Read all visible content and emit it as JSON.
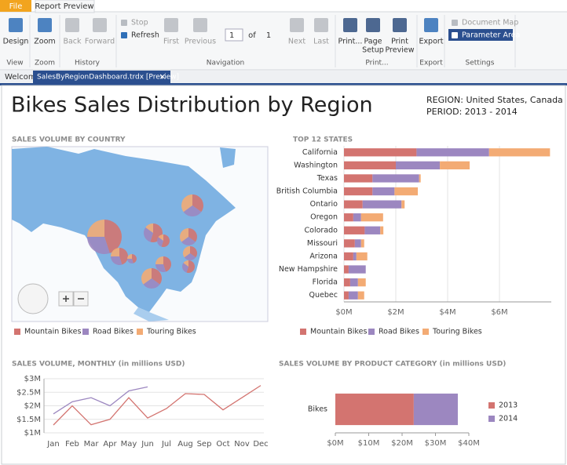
{
  "ribbon": {
    "tabs": [
      "File",
      "Report Preview"
    ],
    "groups": [
      {
        "label": "View",
        "buttons": [
          {
            "lines": [
              "Design"
            ]
          }
        ]
      },
      {
        "label": "Zoom",
        "buttons": [
          {
            "lines": [
              "Zoom"
            ]
          }
        ]
      },
      {
        "label": "History",
        "buttons": [
          {
            "lines": [
              "Back"
            ]
          },
          {
            "lines": [
              "Forward"
            ]
          }
        ]
      },
      {
        "label": "Navigation",
        "buttons": [
          {
            "lines": [
              "Stop"
            ]
          },
          {
            "lines": [
              "Refresh"
            ]
          },
          {
            "lines": [
              "First"
            ]
          },
          {
            "lines": [
              "Previous"
            ]
          },
          {
            "lines": [
              "Next"
            ]
          },
          {
            "lines": [
              "Last"
            ]
          }
        ],
        "page": "1",
        "of": "of",
        "count": "1"
      },
      {
        "label": "Print...",
        "buttons": [
          {
            "lines": [
              "Print..."
            ]
          },
          {
            "lines": [
              "Page",
              "Setup"
            ]
          },
          {
            "lines": [
              "Print",
              "Preview"
            ]
          }
        ]
      },
      {
        "label": "Export",
        "buttons": [
          {
            "lines": [
              "Export"
            ]
          }
        ]
      },
      {
        "label": "Settings",
        "buttons": [
          {
            "lines": [
              "Document Map"
            ]
          },
          {
            "lines": [
              "Parameter Area"
            ]
          }
        ]
      }
    ]
  },
  "doc_tabs": [
    "Welcome",
    "SalesByRegionDashboard.trdx [Preview]"
  ],
  "report": {
    "title": "Bikes Sales Distribution by Region",
    "region": "REGION: United States, Canada",
    "period": "PERIOD: 2013 - 2014"
  },
  "chart_data": [
    {
      "type": "map",
      "title": "SALES VOLUME BY COUNTRY",
      "series": [
        {
          "name": "Mountain Bikes",
          "color": "#d37470"
        },
        {
          "name": "Road Bikes",
          "color": "#9c87c0"
        },
        {
          "name": "Touring Bikes",
          "color": "#f3ab74"
        }
      ]
    },
    {
      "type": "bar",
      "orientation": "horizontal",
      "stacked": true,
      "title": "TOP 12 STATES",
      "categories": [
        "California",
        "Washington",
        "Texas",
        "British Columbia",
        "Ontario",
        "Oregon",
        "Colorado",
        "Missouri",
        "Arizona",
        "New Hampshire",
        "Florida",
        "Quebec"
      ],
      "series": [
        {
          "name": "Mountain Bikes",
          "color": "#d37470",
          "values": [
            2800000,
            2000000,
            1100000,
            1100000,
            720000,
            360000,
            800000,
            420000,
            360000,
            180000,
            240000,
            180000
          ]
        },
        {
          "name": "Road Bikes",
          "color": "#9c87c0",
          "values": [
            2800000,
            1700000,
            1800000,
            850000,
            1500000,
            300000,
            600000,
            240000,
            120000,
            660000,
            300000,
            360000
          ]
        },
        {
          "name": "Touring Bikes",
          "color": "#f3ab74",
          "values": [
            2350000,
            1150000,
            60000,
            900000,
            120000,
            850000,
            120000,
            120000,
            420000,
            0,
            300000,
            240000
          ]
        }
      ],
      "xlim": [
        0,
        8000000
      ],
      "xticks": [
        {
          "value": 0,
          "label": "$0M"
        },
        {
          "value": 2000000,
          "label": "$2M"
        },
        {
          "value": 4000000,
          "label": "$4M"
        },
        {
          "value": 6000000,
          "label": "$6M"
        }
      ],
      "grid": true
    },
    {
      "type": "line",
      "title": "SALES VOLUME, MONTHLY (in millions USD)",
      "categories": [
        "Jan",
        "Feb",
        "Mar",
        "Apr",
        "May",
        "Jun",
        "Jul",
        "Aug",
        "Sep",
        "Oct",
        "Nov",
        "Dec"
      ],
      "series": [
        {
          "color": "#d37470",
          "values": [
            1.29,
            2.0,
            1.3,
            1.5,
            2.3,
            1.55,
            1.9,
            2.45,
            2.42,
            1.85,
            2.3,
            2.75
          ]
        },
        {
          "color": "#9c87c0",
          "values": [
            1.7,
            2.15,
            2.3,
            2.0,
            2.55,
            2.7,
            null,
            null,
            null,
            null,
            null,
            null
          ]
        }
      ],
      "ylim": [
        1,
        3
      ],
      "yticks": [
        {
          "value": 1,
          "label": "$1M"
        },
        {
          "value": 1.5,
          "label": "$1.5M"
        },
        {
          "value": 2,
          "label": "$2M"
        },
        {
          "value": 2.5,
          "label": "$2.5M"
        },
        {
          "value": 3,
          "label": "$3M"
        }
      ],
      "grid": true
    },
    {
      "type": "bar",
      "orientation": "horizontal",
      "stacked": true,
      "title": "SALES VOLUME BY PRODUCT CATEGORY (in millions USD)",
      "categories": [
        "Bikes"
      ],
      "series": [
        {
          "name": "2013",
          "color": "#d37470",
          "values": [
            23.5
          ]
        },
        {
          "name": "2014",
          "color": "#9c87c0",
          "values": [
            13.2
          ]
        }
      ],
      "xlim": [
        0,
        40
      ],
      "xticks": [
        {
          "value": 0,
          "label": "$0M"
        },
        {
          "value": 10,
          "label": "$10M"
        },
        {
          "value": 20,
          "label": "$20M"
        },
        {
          "value": 30,
          "label": "$30M"
        },
        {
          "value": 40,
          "label": "$40M"
        }
      ],
      "legend": "right"
    }
  ]
}
